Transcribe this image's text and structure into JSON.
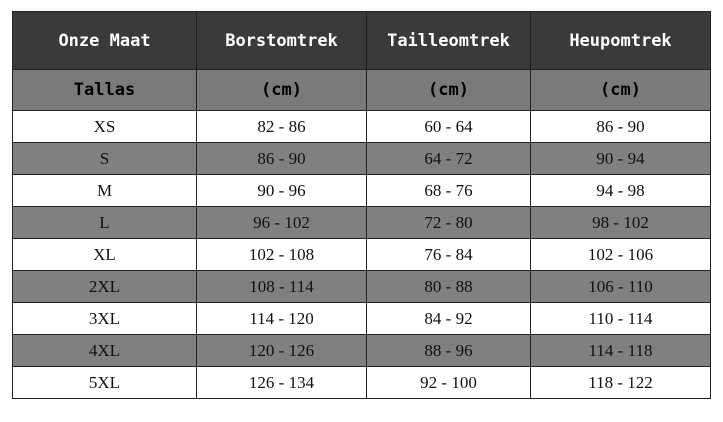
{
  "colors": {
    "header_bg": "#3a3a3a",
    "subheader_bg": "#7a7a7a",
    "row_light": "#ffffff",
    "row_dark": "#808080"
  },
  "table": {
    "headers": [
      "Onze Maat",
      "Borstomtrek",
      "Tailleomtrek",
      "Heupomtrek"
    ],
    "subheaders": [
      "Tallas",
      "(cm)",
      "(cm)",
      "(cm)"
    ],
    "rows": [
      [
        "XS",
        "82 - 86",
        "60 - 64",
        "86 - 90"
      ],
      [
        "S",
        "86 - 90",
        "64 - 72",
        "90 - 94"
      ],
      [
        "M",
        "90 - 96",
        "68 - 76",
        "94 - 98"
      ],
      [
        "L",
        "96 - 102",
        "72 - 80",
        "98 - 102"
      ],
      [
        "XL",
        "102 - 108",
        "76 - 84",
        "102 - 106"
      ],
      [
        "2XL",
        "108 - 114",
        "80 - 88",
        "106 - 110"
      ],
      [
        "3XL",
        "114 - 120",
        "84 - 92",
        "110 - 114"
      ],
      [
        "4XL",
        "120 - 126",
        "88 - 96",
        "114 - 118"
      ],
      [
        "5XL",
        "126 - 134",
        "92 - 100",
        "118 - 122"
      ]
    ]
  }
}
